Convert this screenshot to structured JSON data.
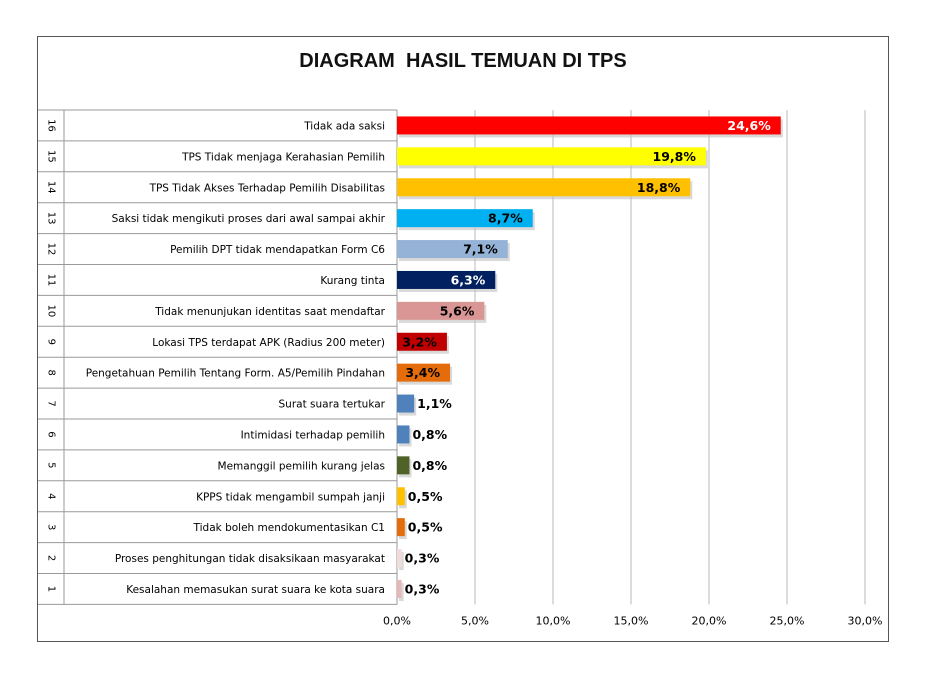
{
  "chart_data": {
    "type": "bar",
    "orientation": "horizontal",
    "title": "DIAGRAM  HASIL TEMUAN DI TPS",
    "grid": true,
    "xlim": [
      0,
      30
    ],
    "x_ticks": [
      "0,0%",
      "5,0%",
      "10,0%",
      "15,0%",
      "20,0%",
      "25,0%",
      "30,0%"
    ],
    "rows": [
      {
        "num": "16",
        "label": "Tidak ada saksi",
        "value": 24.6,
        "value_label": "24,6%",
        "color": "#ff0000",
        "label_color": "#ffffff"
      },
      {
        "num": "15",
        "label": "TPS Tidak menjaga Kerahasian Pemilih",
        "value": 19.8,
        "value_label": "19,8%",
        "color": "#ffff00",
        "label_color": "#000000"
      },
      {
        "num": "14",
        "label": "TPS Tidak Akses Terhadap Pemilih Disabilitas",
        "value": 18.8,
        "value_label": "18,8%",
        "color": "#ffc000",
        "label_color": "#000000"
      },
      {
        "num": "13",
        "label": "Saksi tidak mengikuti proses dari awal sampai akhir",
        "value": 8.7,
        "value_label": "8,7%",
        "color": "#00b0f0",
        "label_color": "#000000"
      },
      {
        "num": "12",
        "label": "Pemilih DPT tidak mendapatkan Form C6",
        "value": 7.1,
        "value_label": "7,1%",
        "color": "#95b3d7",
        "label_color": "#000000"
      },
      {
        "num": "11",
        "label": "Kurang tinta",
        "value": 6.3,
        "value_label": "6,3%",
        "color": "#002060",
        "label_color": "#ffffff"
      },
      {
        "num": "10",
        "label": "Tidak menunjukan identitas saat mendaftar",
        "value": 5.6,
        "value_label": "5,6%",
        "color": "#da9694",
        "label_color": "#000000"
      },
      {
        "num": "9",
        "label": "Lokasi TPS terdapat APK (Radius 200 meter)",
        "value": 3.2,
        "value_label": "3,2%",
        "color": "#c00000",
        "label_color": "#000000"
      },
      {
        "num": "8",
        "label": "Pengetahuan Pemilih Tentang Form. A5/Pemilih Pindahan",
        "value": 3.4,
        "value_label": "3,4%",
        "color": "#e46c0a",
        "label_color": "#000000"
      },
      {
        "num": "7",
        "label": "Surat suara tertukar",
        "value": 1.1,
        "value_label": "1,1%",
        "color": "#4f81bd",
        "label_color": "#000000"
      },
      {
        "num": "6",
        "label": "Intimidasi terhadap pemilih",
        "value": 0.8,
        "value_label": "0,8%",
        "color": "#4f81bd",
        "label_color": "#000000"
      },
      {
        "num": "5",
        "label": "Memanggil pemilih kurang jelas",
        "value": 0.8,
        "value_label": "0,8%",
        "color": "#4f6228",
        "label_color": "#000000"
      },
      {
        "num": "4",
        "label": "KPPS tidak mengambil sumpah janji",
        "value": 0.5,
        "value_label": "0,5%",
        "color": "#ffc000",
        "label_color": "#000000"
      },
      {
        "num": "3",
        "label": "Tidak boleh mendokumentasikan C1",
        "value": 0.5,
        "value_label": "0,5%",
        "color": "#e46c0a",
        "label_color": "#000000"
      },
      {
        "num": "2",
        "label": "Proses penghitungan tidak disaksikaan masyarakat",
        "value": 0.3,
        "value_label": "0,3%",
        "color": "#f2dcdb",
        "label_color": "#000000"
      },
      {
        "num": "1",
        "label": "Kesalahan memasukan surat suara ke kota suara",
        "value": 0.3,
        "value_label": "0,3%",
        "color": "#e6b9b8",
        "label_color": "#000000"
      }
    ]
  }
}
